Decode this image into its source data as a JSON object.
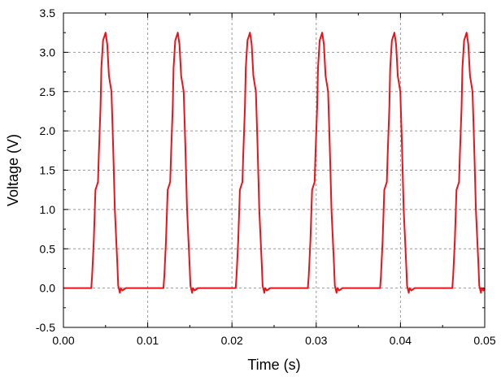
{
  "chart_data": {
    "type": "line",
    "title": "",
    "xlabel": "Time (s)",
    "ylabel": "Voltage (V)",
    "xlim": [
      0.0,
      0.05
    ],
    "ylim": [
      -0.5,
      3.5
    ],
    "x_ticks": [
      "0.00",
      "0.01",
      "0.02",
      "0.03",
      "0.04",
      "0.05"
    ],
    "y_ticks": [
      "-0.5",
      "0.0",
      "0.5",
      "1.0",
      "1.5",
      "2.0",
      "2.5",
      "3.0",
      "3.5"
    ],
    "grid": true,
    "colors": {
      "series": "#e8141b",
      "grid": "#9a9a9a",
      "axis": "#000000"
    },
    "series": [
      {
        "period": 0.00857,
        "pulse_count": 6,
        "first_pulse_start": 0.0033,
        "pulse_shape_relative_time": [
          -0.0033,
          0.0,
          0.0001,
          0.0003,
          0.0005,
          0.0008,
          0.0009,
          0.0011,
          0.0012,
          0.0014,
          0.0017,
          0.0019,
          0.0021,
          0.0024,
          0.0026,
          0.0028,
          0.0031,
          0.0032,
          0.0034,
          0.0035,
          0.0037,
          0.0041,
          0.0053
        ],
        "pulse_shape_voltage": [
          0.0,
          0.0,
          0.15,
          0.6,
          1.25,
          1.35,
          1.7,
          2.3,
          2.8,
          3.15,
          3.25,
          3.1,
          2.7,
          2.5,
          1.8,
          1.0,
          0.3,
          0.03,
          -0.06,
          0.0,
          -0.03,
          0.0,
          0.0
        ]
      }
    ]
  }
}
